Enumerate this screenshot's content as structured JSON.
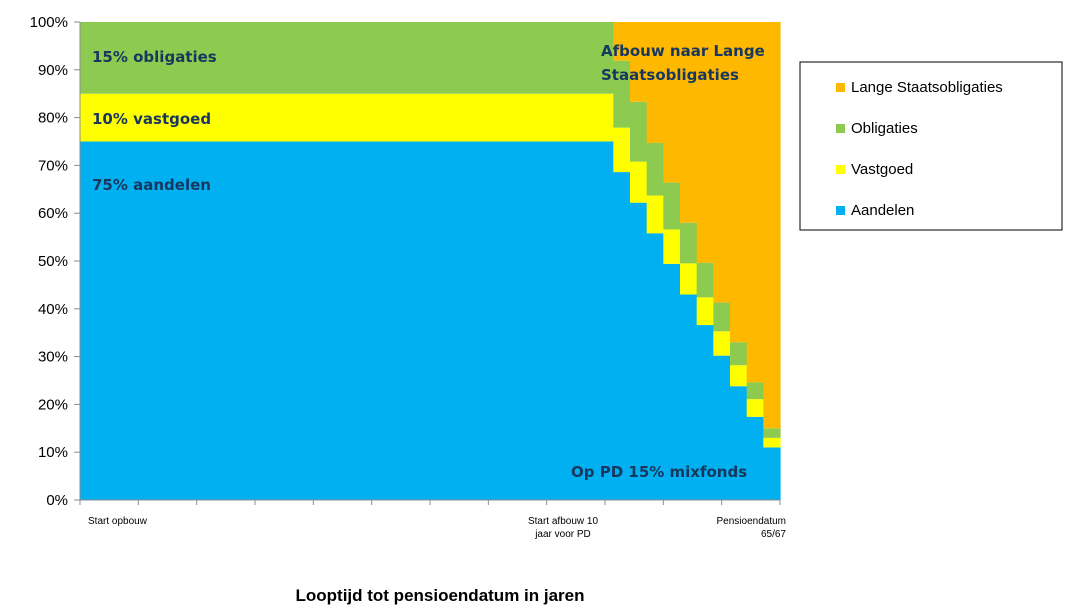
{
  "chart_data": {
    "type": "area",
    "stacked": true,
    "x_tick_labels": [
      "Start opbouw",
      "Start afbouw 10 jaar voor PD",
      "Pensioendatum 65/67"
    ],
    "xlabel": "Looptijd tot pensioendatum in jaren",
    "ylabel": "",
    "y_ticks": [
      "0%",
      "10%",
      "20%",
      "30%",
      "40%",
      "50%",
      "60%",
      "70%",
      "80%",
      "90%",
      "100%"
    ],
    "ylim": [
      0,
      100
    ],
    "grid": false,
    "legend_position": "right",
    "years": [
      0,
      1,
      2,
      3,
      4,
      5,
      6,
      7,
      8,
      9,
      10,
      11,
      12,
      13,
      14,
      15,
      16,
      17,
      18,
      19,
      20,
      21,
      22,
      23,
      24,
      25,
      26,
      27,
      28,
      29,
      30,
      31,
      32,
      33,
      34,
      35,
      36,
      37,
      38,
      39,
      40,
      41
    ],
    "series": [
      {
        "name": "Aandelen",
        "color": "#00B0F0",
        "values": [
          75,
          75,
          75,
          75,
          75,
          75,
          75,
          75,
          75,
          75,
          75,
          75,
          75,
          75,
          75,
          75,
          75,
          75,
          75,
          75,
          75,
          75,
          75,
          75,
          75,
          75,
          75,
          75,
          75,
          75,
          75,
          75,
          68.6,
          62.2,
          55.8,
          49.4,
          43,
          36.6,
          30.2,
          23.8,
          17.4,
          11
        ]
      },
      {
        "name": "Vastgoed",
        "color": "#FFFF00",
        "values": [
          10,
          10,
          10,
          10,
          10,
          10,
          10,
          10,
          10,
          10,
          10,
          10,
          10,
          10,
          10,
          10,
          10,
          10,
          10,
          10,
          10,
          10,
          10,
          10,
          10,
          10,
          10,
          10,
          10,
          10,
          10,
          10,
          9.3,
          8.6,
          7.9,
          7.2,
          6.5,
          5.8,
          5.1,
          4.4,
          3.7,
          2
        ]
      },
      {
        "name": "Obligaties",
        "color": "#8CCB50",
        "values": [
          15,
          15,
          15,
          15,
          15,
          15,
          15,
          15,
          15,
          15,
          15,
          15,
          15,
          15,
          15,
          15,
          15,
          15,
          15,
          15,
          15,
          15,
          15,
          15,
          15,
          15,
          15,
          15,
          15,
          15,
          15,
          15,
          14,
          12.5,
          11,
          9.8,
          8.5,
          7.2,
          6,
          4.8,
          3.5,
          2
        ]
      },
      {
        "name": "Lange Staatsobligaties",
        "color": "#FFB800",
        "values": [
          0,
          0,
          0,
          0,
          0,
          0,
          0,
          0,
          0,
          0,
          0,
          0,
          0,
          0,
          0,
          0,
          0,
          0,
          0,
          0,
          0,
          0,
          0,
          0,
          0,
          0,
          0,
          0,
          0,
          0,
          0,
          0,
          8.1,
          16.7,
          25.3,
          33.6,
          42,
          50.4,
          58.7,
          67,
          75.4,
          85
        ]
      }
    ],
    "legend_order": [
      "Lange Staatsobligaties",
      "Obligaties",
      "Vastgoed",
      "Aandelen"
    ],
    "annotations": [
      {
        "text": "15% obligaties",
        "color": "#17375E"
      },
      {
        "text": "10% vastgoed",
        "color": "#17375E"
      },
      {
        "text": "75% aandelen",
        "color": "#17375E"
      },
      {
        "text": "Afbouw naar Lange",
        "color": "#17375E"
      },
      {
        "text": "Staatsobligaties",
        "color": "#17375E"
      },
      {
        "text": "Op PD 15% mixfonds",
        "color": "#17375E"
      }
    ]
  }
}
